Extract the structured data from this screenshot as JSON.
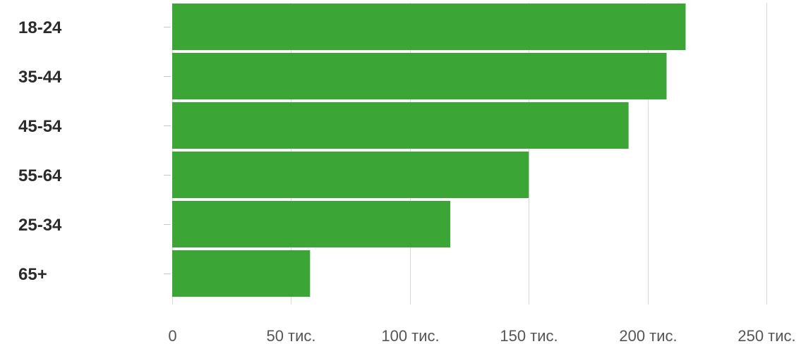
{
  "chart_data": {
    "type": "bar",
    "orientation": "horizontal",
    "categories": [
      "18-24",
      "35-44",
      "45-54",
      "55-64",
      "25-34",
      "65+"
    ],
    "values": [
      216000,
      208000,
      192000,
      150000,
      117000,
      58000
    ],
    "x_ticks": [
      {
        "value": 0,
        "label": "0"
      },
      {
        "value": 50000,
        "label": "50 тис."
      },
      {
        "value": 100000,
        "label": "100 тис."
      },
      {
        "value": 150000,
        "label": "150 тис."
      },
      {
        "value": 200000,
        "label": "200 тис."
      },
      {
        "value": 250000,
        "label": "250 тис."
      }
    ],
    "xlim": [
      0,
      250000
    ],
    "bar_color": "#3ba535",
    "grid": true,
    "legend": "none"
  }
}
